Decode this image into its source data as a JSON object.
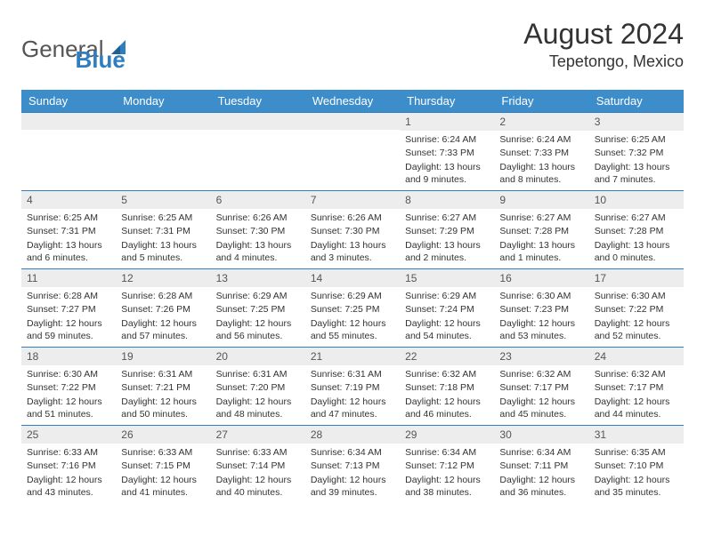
{
  "logo": {
    "text1": "General",
    "text2": "Blue"
  },
  "title": "August 2024",
  "location": "Tepetongo, Mexico",
  "colors": {
    "header_bg": "#3d8dca",
    "header_text": "#ffffff",
    "row_border": "#2f7ec2",
    "daynum_bg": "#ededed",
    "text": "#333333"
  },
  "day_labels": [
    "Sunday",
    "Monday",
    "Tuesday",
    "Wednesday",
    "Thursday",
    "Friday",
    "Saturday"
  ],
  "cell_labels": {
    "sunrise": "Sunrise:",
    "sunset": "Sunset:",
    "daylight": "Daylight:"
  },
  "weeks": [
    [
      null,
      null,
      null,
      null,
      {
        "n": "1",
        "sunrise": "6:24 AM",
        "sunset": "7:33 PM",
        "day_h": "13",
        "day_m": "9"
      },
      {
        "n": "2",
        "sunrise": "6:24 AM",
        "sunset": "7:33 PM",
        "day_h": "13",
        "day_m": "8"
      },
      {
        "n": "3",
        "sunrise": "6:25 AM",
        "sunset": "7:32 PM",
        "day_h": "13",
        "day_m": "7"
      }
    ],
    [
      {
        "n": "4",
        "sunrise": "6:25 AM",
        "sunset": "7:31 PM",
        "day_h": "13",
        "day_m": "6"
      },
      {
        "n": "5",
        "sunrise": "6:25 AM",
        "sunset": "7:31 PM",
        "day_h": "13",
        "day_m": "5"
      },
      {
        "n": "6",
        "sunrise": "6:26 AM",
        "sunset": "7:30 PM",
        "day_h": "13",
        "day_m": "4"
      },
      {
        "n": "7",
        "sunrise": "6:26 AM",
        "sunset": "7:30 PM",
        "day_h": "13",
        "day_m": "3"
      },
      {
        "n": "8",
        "sunrise": "6:27 AM",
        "sunset": "7:29 PM",
        "day_h": "13",
        "day_m": "2"
      },
      {
        "n": "9",
        "sunrise": "6:27 AM",
        "sunset": "7:28 PM",
        "day_h": "13",
        "day_m": "1"
      },
      {
        "n": "10",
        "sunrise": "6:27 AM",
        "sunset": "7:28 PM",
        "day_h": "13",
        "day_m": "0"
      }
    ],
    [
      {
        "n": "11",
        "sunrise": "6:28 AM",
        "sunset": "7:27 PM",
        "day_h": "12",
        "day_m": "59"
      },
      {
        "n": "12",
        "sunrise": "6:28 AM",
        "sunset": "7:26 PM",
        "day_h": "12",
        "day_m": "57"
      },
      {
        "n": "13",
        "sunrise": "6:29 AM",
        "sunset": "7:25 PM",
        "day_h": "12",
        "day_m": "56"
      },
      {
        "n": "14",
        "sunrise": "6:29 AM",
        "sunset": "7:25 PM",
        "day_h": "12",
        "day_m": "55"
      },
      {
        "n": "15",
        "sunrise": "6:29 AM",
        "sunset": "7:24 PM",
        "day_h": "12",
        "day_m": "54"
      },
      {
        "n": "16",
        "sunrise": "6:30 AM",
        "sunset": "7:23 PM",
        "day_h": "12",
        "day_m": "53"
      },
      {
        "n": "17",
        "sunrise": "6:30 AM",
        "sunset": "7:22 PM",
        "day_h": "12",
        "day_m": "52"
      }
    ],
    [
      {
        "n": "18",
        "sunrise": "6:30 AM",
        "sunset": "7:22 PM",
        "day_h": "12",
        "day_m": "51"
      },
      {
        "n": "19",
        "sunrise": "6:31 AM",
        "sunset": "7:21 PM",
        "day_h": "12",
        "day_m": "50"
      },
      {
        "n": "20",
        "sunrise": "6:31 AM",
        "sunset": "7:20 PM",
        "day_h": "12",
        "day_m": "48"
      },
      {
        "n": "21",
        "sunrise": "6:31 AM",
        "sunset": "7:19 PM",
        "day_h": "12",
        "day_m": "47"
      },
      {
        "n": "22",
        "sunrise": "6:32 AM",
        "sunset": "7:18 PM",
        "day_h": "12",
        "day_m": "46"
      },
      {
        "n": "23",
        "sunrise": "6:32 AM",
        "sunset": "7:17 PM",
        "day_h": "12",
        "day_m": "45"
      },
      {
        "n": "24",
        "sunrise": "6:32 AM",
        "sunset": "7:17 PM",
        "day_h": "12",
        "day_m": "44"
      }
    ],
    [
      {
        "n": "25",
        "sunrise": "6:33 AM",
        "sunset": "7:16 PM",
        "day_h": "12",
        "day_m": "43"
      },
      {
        "n": "26",
        "sunrise": "6:33 AM",
        "sunset": "7:15 PM",
        "day_h": "12",
        "day_m": "41"
      },
      {
        "n": "27",
        "sunrise": "6:33 AM",
        "sunset": "7:14 PM",
        "day_h": "12",
        "day_m": "40"
      },
      {
        "n": "28",
        "sunrise": "6:34 AM",
        "sunset": "7:13 PM",
        "day_h": "12",
        "day_m": "39"
      },
      {
        "n": "29",
        "sunrise": "6:34 AM",
        "sunset": "7:12 PM",
        "day_h": "12",
        "day_m": "38"
      },
      {
        "n": "30",
        "sunrise": "6:34 AM",
        "sunset": "7:11 PM",
        "day_h": "12",
        "day_m": "36"
      },
      {
        "n": "31",
        "sunrise": "6:35 AM",
        "sunset": "7:10 PM",
        "day_h": "12",
        "day_m": "35"
      }
    ]
  ]
}
